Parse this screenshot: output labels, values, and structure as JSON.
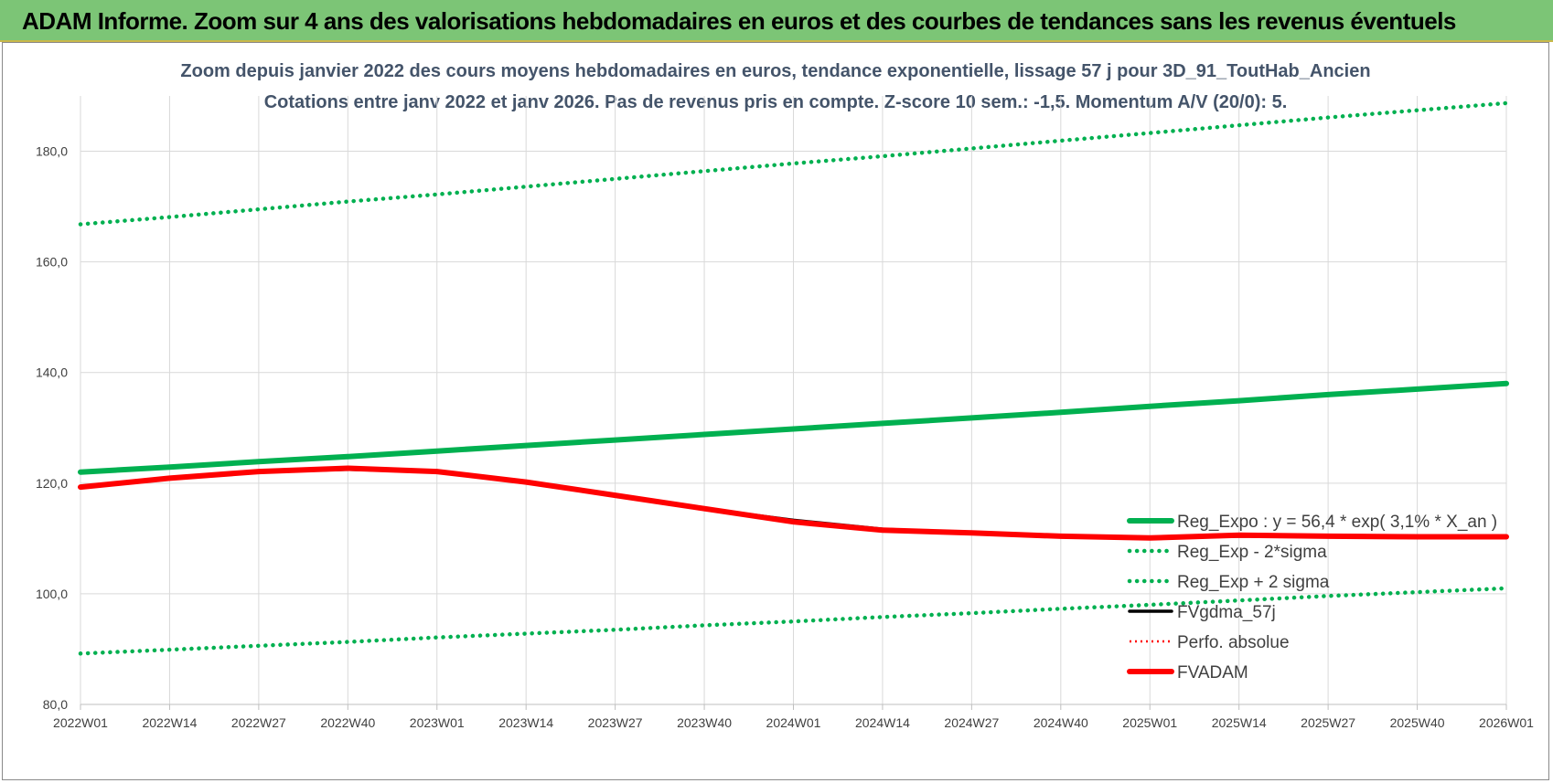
{
  "banner": {
    "title": "ADAM Informe. Zoom sur 4 ans des valorisations hebdomadaires en euros et des courbes de tendances sans les revenus éventuels"
  },
  "chart_data": {
    "type": "line",
    "title": "Zoom depuis janvier 2022 des cours moyens hebdomadaires en euros, tendance exponentielle, lissage 57 j pour 3D_91_ToutHab_Ancien",
    "subtitle": "Cotations entre janv 2022 et janv 2026. Pas de revenus pris en compte. Z-score 10 sem.: -1,5. Momentum A/V (20/0): 5.",
    "xlabel": "",
    "ylabel": "",
    "x_ticks": [
      "2022W01",
      "2022W14",
      "2022W27",
      "2022W40",
      "2023W01",
      "2023W14",
      "2023W27",
      "2023W40",
      "2024W01",
      "2024W14",
      "2024W27",
      "2024W40",
      "2025W01",
      "2025W14",
      "2025W27",
      "2025W40",
      "2026W01"
    ],
    "ylim": [
      80,
      190
    ],
    "y_ticks": [
      "80,0",
      "100,0",
      "120,0",
      "140,0",
      "160,0",
      "180,0"
    ],
    "y_tick_values": [
      80,
      100,
      120,
      140,
      160,
      180
    ],
    "grid": true,
    "legend_position": "right",
    "colors": {
      "green": "#00b050",
      "red": "#ff0000",
      "black": "#000000"
    },
    "series": [
      {
        "name": "Reg_Expo : y = 56,4 * exp( 3,1% * X_an )",
        "style": "solid-thick",
        "color": "#00b050",
        "values": [
          122.0,
          122.9,
          123.9,
          124.8,
          125.8,
          126.8,
          127.8,
          128.8,
          129.8,
          130.8,
          131.8,
          132.8,
          133.9,
          134.9,
          136.0,
          137.0,
          138.0
        ]
      },
      {
        "name": "Reg_Exp - 2*sigma",
        "style": "dotted",
        "color": "#00b050",
        "values": [
          89.2,
          89.9,
          90.6,
          91.3,
          92.1,
          92.8,
          93.5,
          94.3,
          95.0,
          95.8,
          96.5,
          97.3,
          98.0,
          98.8,
          99.6,
          100.3,
          101.0
        ]
      },
      {
        "name": "Reg_Exp + 2 sigma",
        "style": "dotted",
        "color": "#00b050",
        "values": [
          166.8,
          168.1,
          169.5,
          170.9,
          172.2,
          173.6,
          175.0,
          176.4,
          177.8,
          179.1,
          180.5,
          181.9,
          183.3,
          184.7,
          186.1,
          187.4,
          188.7
        ]
      },
      {
        "name": "FVgdma_57j",
        "style": "solid-medium",
        "color": "#000000",
        "values": [
          119.3,
          120.9,
          122.1,
          122.5,
          122.1,
          120.2,
          117.8,
          115.4,
          113.3,
          111.7,
          111.0,
          110.4,
          110.1,
          110.4,
          110.4,
          110.3,
          110.3
        ]
      },
      {
        "name": "Perfo. absolue",
        "style": "dotted-thin",
        "color": "#ff0000",
        "values": []
      },
      {
        "name": "FVADAM",
        "style": "solid-thick",
        "color": "#ff0000",
        "values": [
          119.3,
          120.9,
          122.1,
          122.7,
          122.1,
          120.2,
          117.8,
          115.4,
          113.0,
          111.5,
          111.0,
          110.4,
          110.1,
          110.6,
          110.4,
          110.3,
          110.3
        ]
      }
    ]
  }
}
